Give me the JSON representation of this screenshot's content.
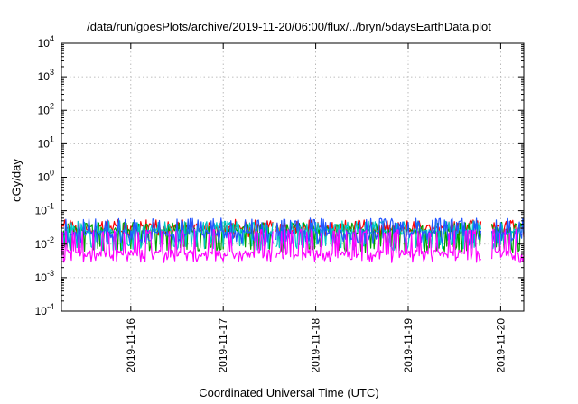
{
  "chart_data": {
    "type": "line",
    "title": "/data/run/goesPlots/archive/2019-11-20/06:00/flux/../bryn/5daysEarthData.plot",
    "xlabel": "Coordinated Universal Time (UTC)",
    "ylabel": "cGy/day",
    "y_scale": "log",
    "ylim": [
      0.0001,
      10000
    ],
    "y_ticks": [
      {
        "value": 0.0001,
        "base": "10",
        "exp": "-4"
      },
      {
        "value": 0.001,
        "base": "10",
        "exp": "-3"
      },
      {
        "value": 0.01,
        "base": "10",
        "exp": "-2"
      },
      {
        "value": 0.1,
        "base": "10",
        "exp": "-1"
      },
      {
        "value": 1,
        "base": "10",
        "exp": "0"
      },
      {
        "value": 10,
        "base": "10",
        "exp": "1"
      },
      {
        "value": 100,
        "base": "10",
        "exp": "2"
      },
      {
        "value": 1000,
        "base": "10",
        "exp": "3"
      },
      {
        "value": 10000,
        "base": "10",
        "exp": "4"
      }
    ],
    "xlim": [
      "2019-11-15T06:00",
      "2019-11-20T06:00"
    ],
    "x_ticks": [
      "2019-11-16",
      "2019-11-17",
      "2019-11-18",
      "2019-11-19",
      "2019-11-20"
    ],
    "grid": true,
    "gaps": [
      [
        "2019-11-17T13:00",
        "2019-11-17T13:30"
      ],
      [
        "2019-11-19T19:00",
        "2019-11-19T21:30"
      ]
    ],
    "series": [
      {
        "color": "#ff0000",
        "level": 0.032,
        "spike": 0.055,
        "dip": 0.02
      },
      {
        "color": "#00a000",
        "level": 0.026,
        "spike": 0.045,
        "dip": 0.007
      },
      {
        "color": "#00c8c8",
        "level": 0.024,
        "spike": 0.05,
        "dip": 0.008
      },
      {
        "color": "#2255ff",
        "level": 0.022,
        "spike": 0.06,
        "dip": 0.012
      },
      {
        "color": "#ff00ff",
        "level": 0.0055,
        "spike": 0.028,
        "dip": 0.0035
      }
    ]
  }
}
